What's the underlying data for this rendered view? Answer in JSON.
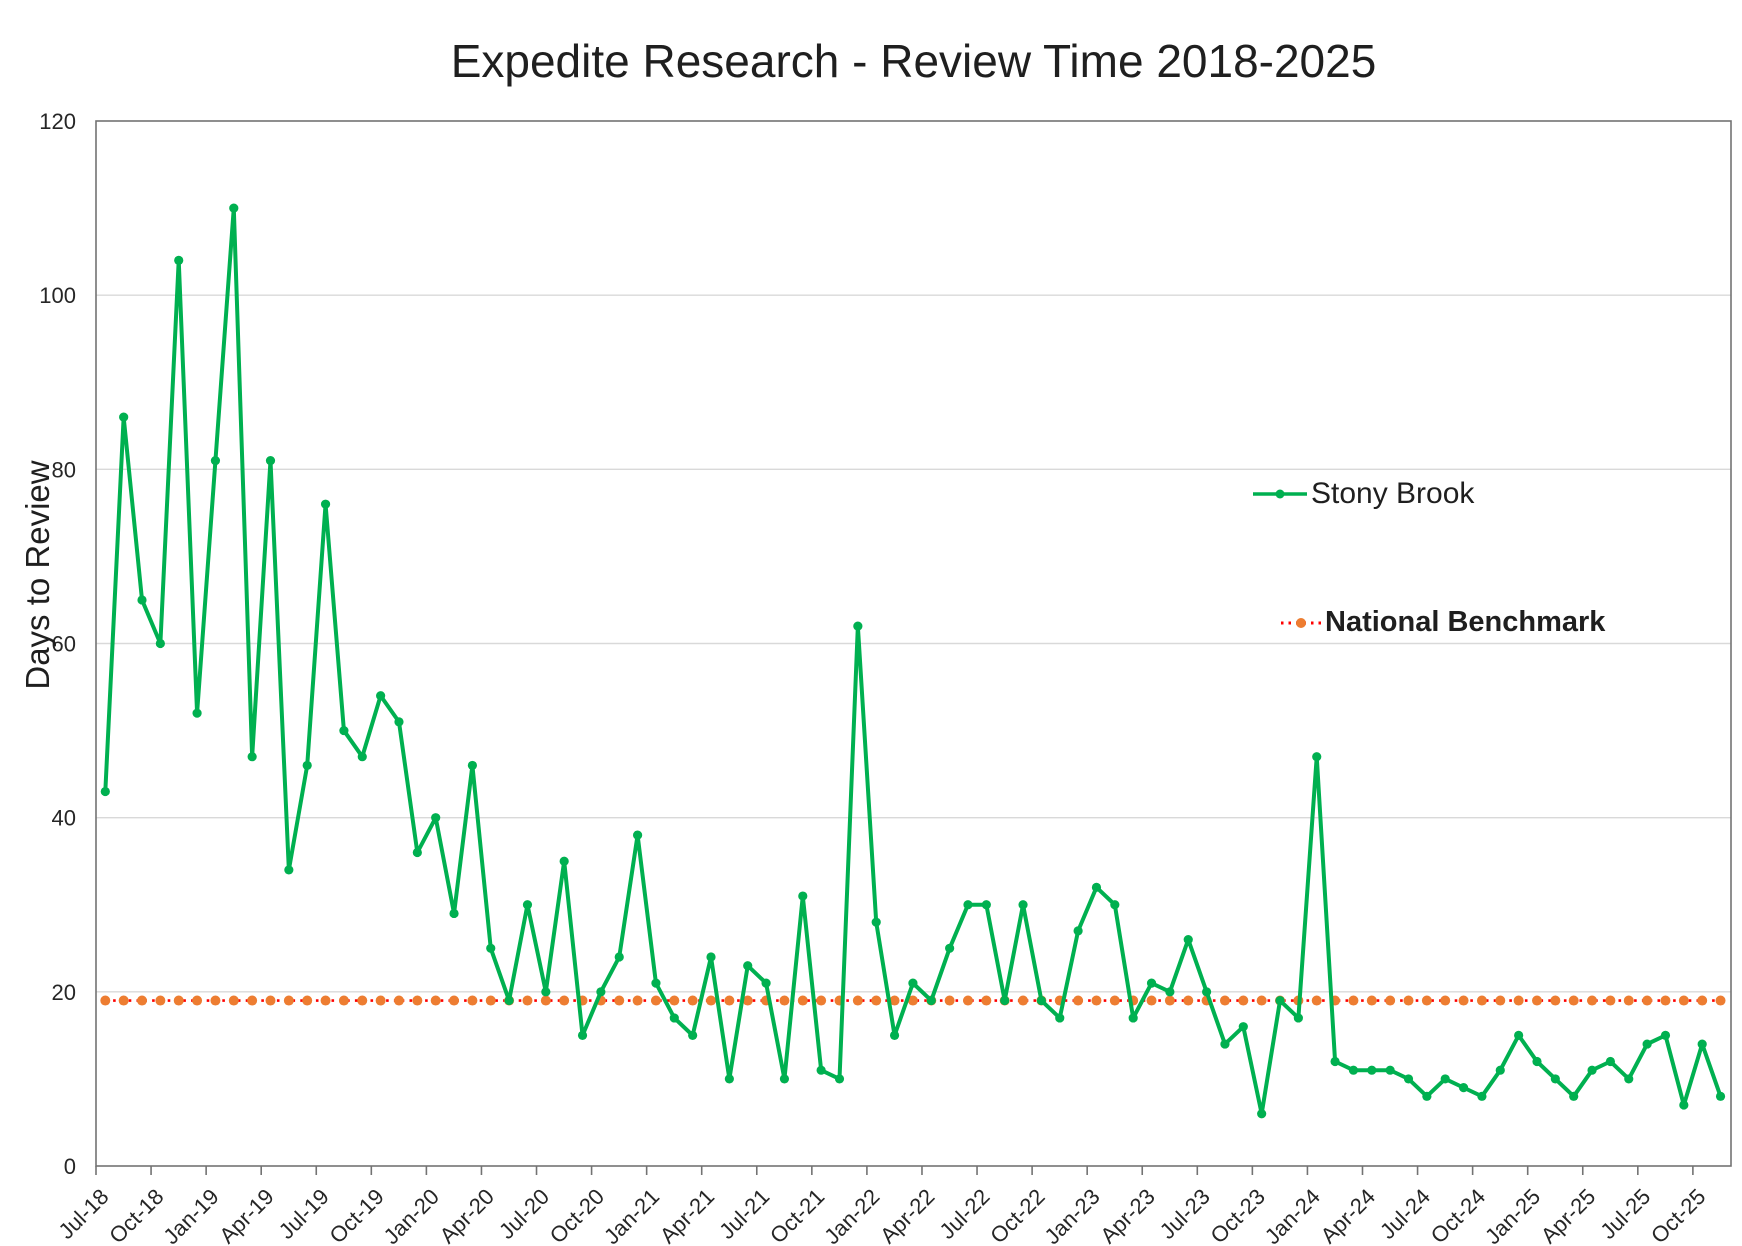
{
  "title": "Expedite Research - Review Time 2018-2025",
  "legend": {
    "series_label": "Stony Brook",
    "benchmark_label": "National Benchmark"
  },
  "colors": {
    "series_green": "#00B050",
    "benchmark_red": "#FF0000",
    "benchmark_orange": "#ED7D31",
    "gridline": "#D9D9D9",
    "axis_border": "#737373",
    "text": "#262626"
  },
  "chart_data": {
    "type": "line",
    "title": "Expedite Research - Review Time 2018-2025",
    "xlabel": "",
    "ylabel": "Days to Review",
    "ylim": [
      0,
      120
    ],
    "y_ticks": [
      0,
      20,
      40,
      60,
      80,
      100,
      120
    ],
    "grid": true,
    "legend_position": "inside-right",
    "x_tick_labels": [
      "Jul-18",
      "Oct-18",
      "Jan-19",
      "Apr-19",
      "Jul-19",
      "Oct-19",
      "Jan-20",
      "Apr-20",
      "Jul-20",
      "Oct-20",
      "Jan-21",
      "Apr-21",
      "Jul-21",
      "Oct-21",
      "Jan-22",
      "Apr-22",
      "Jul-22",
      "Oct-22",
      "Jan-23",
      "Apr-23",
      "Jul-23",
      "Oct-23",
      "Jan-24",
      "Apr-24",
      "Jul-24",
      "Oct-24",
      "Jan-25",
      "Apr-25",
      "Jul-25",
      "Oct-25"
    ],
    "months": [
      "Jul-18",
      "Aug-18",
      "Sep-18",
      "Oct-18",
      "Nov-18",
      "Dec-18",
      "Jan-19",
      "Feb-19",
      "Mar-19",
      "Apr-19",
      "May-19",
      "Jun-19",
      "Jul-19",
      "Aug-19",
      "Sep-19",
      "Oct-19",
      "Nov-19",
      "Dec-19",
      "Jan-20",
      "Feb-20",
      "Mar-20",
      "Apr-20",
      "May-20",
      "Jun-20",
      "Jul-20",
      "Aug-20",
      "Sep-20",
      "Oct-20",
      "Nov-20",
      "Dec-20",
      "Jan-21",
      "Feb-21",
      "Mar-21",
      "Apr-21",
      "May-21",
      "Jun-21",
      "Jul-21",
      "Aug-21",
      "Sep-21",
      "Oct-21",
      "Nov-21",
      "Dec-21",
      "Jan-22",
      "Feb-22",
      "Mar-22",
      "Apr-22",
      "May-22",
      "Jun-22",
      "Jul-22",
      "Aug-22",
      "Sep-22",
      "Oct-22",
      "Nov-22",
      "Dec-22",
      "Jan-23",
      "Feb-23",
      "Mar-23",
      "Apr-23",
      "May-23",
      "Jun-23",
      "Jul-23",
      "Aug-23",
      "Sep-23",
      "Oct-23",
      "Nov-23",
      "Dec-23",
      "Jan-24",
      "Feb-24",
      "Mar-24",
      "Apr-24",
      "May-24",
      "Jun-24",
      "Jul-24",
      "Aug-24",
      "Sep-24",
      "Oct-24",
      "Nov-24",
      "Dec-24",
      "Jan-25",
      "Feb-25",
      "Mar-25",
      "Apr-25",
      "May-25",
      "Jun-25",
      "Jul-25",
      "Aug-25",
      "Sep-25",
      "Oct-25",
      "Nov-25"
    ],
    "series": [
      {
        "name": "Stony Brook",
        "values": [
          43,
          86,
          65,
          60,
          104,
          52,
          81,
          110,
          47,
          81,
          34,
          46,
          76,
          50,
          47,
          54,
          51,
          36,
          40,
          29,
          46,
          25,
          19,
          30,
          20,
          35,
          15,
          20,
          24,
          38,
          21,
          17,
          15,
          24,
          10,
          23,
          21,
          10,
          31,
          11,
          10,
          62,
          28,
          15,
          21,
          19,
          25,
          30,
          30,
          19,
          30,
          19,
          17,
          27,
          32,
          30,
          17,
          21,
          20,
          26,
          20,
          14,
          16,
          6,
          19,
          17,
          47,
          12,
          11,
          11,
          11,
          10,
          8,
          10,
          9,
          8,
          11,
          15,
          12,
          10,
          8,
          11,
          12,
          10,
          14,
          15,
          7,
          14,
          8
        ]
      },
      {
        "name": "National Benchmark",
        "constant_value": 19
      }
    ]
  }
}
